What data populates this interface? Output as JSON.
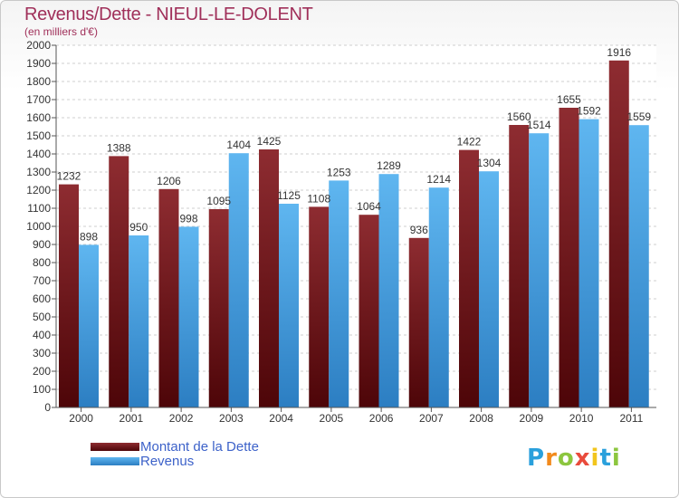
{
  "header": {
    "title": "Revenus/Dette - NIEUL-LE-DOLENT",
    "subtitle": "(en milliers d'€)"
  },
  "chart_data": {
    "type": "bar",
    "title": "Revenus/Dette - NIEUL-LE-DOLENT",
    "subtitle": "(en milliers d'€)",
    "categories": [
      "2000",
      "2001",
      "2002",
      "2003",
      "2004",
      "2005",
      "2006",
      "2007",
      "2008",
      "2009",
      "2010",
      "2011"
    ],
    "series": [
      {
        "name": "Montant de la Dette",
        "color": "#7a1e22",
        "values": [
          1232,
          1388,
          1206,
          1095,
          1425,
          1108,
          1064,
          936,
          1422,
          1560,
          1655,
          1916
        ]
      },
      {
        "name": "Revenus",
        "color": "#4ea8e8",
        "values": [
          898,
          950,
          998,
          1404,
          1125,
          1253,
          1289,
          1214,
          1304,
          1514,
          1592,
          1559
        ]
      }
    ],
    "ylim": [
      0,
      2000
    ],
    "yticks": [
      0,
      100,
      200,
      300,
      400,
      500,
      600,
      700,
      800,
      900,
      1000,
      1100,
      1200,
      1300,
      1400,
      1500,
      1600,
      1700,
      1800,
      1900,
      2000
    ],
    "grid": true,
    "legend_position": "bottom-left"
  },
  "legend": {
    "items": [
      {
        "label": "Montant de la Dette",
        "color": "#7a1e22"
      },
      {
        "label": "Revenus",
        "color": "#4ea8e8"
      }
    ]
  },
  "logo": {
    "letters": [
      "P",
      "r",
      "o",
      "x",
      "i",
      "t",
      "i"
    ],
    "colors": [
      "#2aa0dc",
      "#f28a1c",
      "#8cc63f",
      "#e94b3c",
      "#f2c51c",
      "#2aa0dc",
      "#8cc63f"
    ]
  }
}
